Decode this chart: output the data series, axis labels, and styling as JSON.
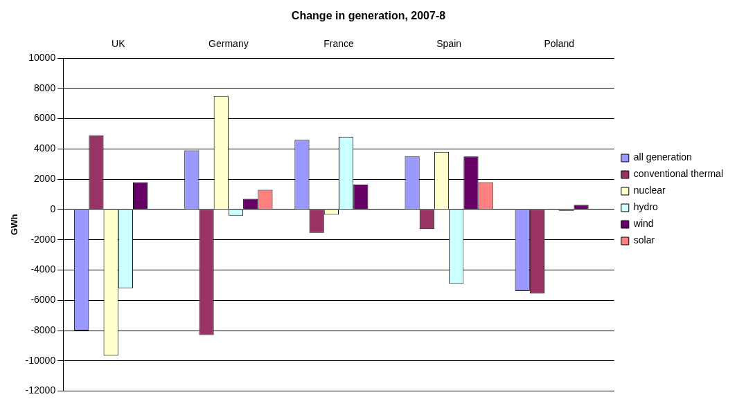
{
  "chart_data": {
    "type": "bar",
    "title": "Change in generation, 2007-8",
    "ylabel": "GWh",
    "categories": [
      "UK",
      "Germany",
      "France",
      "Spain",
      "Poland"
    ],
    "series": [
      {
        "name": "all generation",
        "color": "#9999ff",
        "values": [
          -8000,
          3900,
          4600,
          3500,
          -5400
        ]
      },
      {
        "name": "conventional thermal",
        "color": "#993366",
        "values": [
          4900,
          -8300,
          -1550,
          -1300,
          -5550
        ]
      },
      {
        "name": "nuclear",
        "color": "#ffffcc",
        "values": [
          -9650,
          7500,
          -350,
          3800,
          0
        ]
      },
      {
        "name": "hydro",
        "color": "#ccffff",
        "values": [
          -5200,
          -400,
          4800,
          -4900,
          -100
        ]
      },
      {
        "name": "wind",
        "color": "#660066",
        "values": [
          1800,
          700,
          1650,
          3500,
          300
        ]
      },
      {
        "name": "solar",
        "color": "#ff8080",
        "values": [
          0,
          1300,
          0,
          1800,
          0
        ]
      }
    ],
    "ylim": [
      -12000,
      10000
    ],
    "yticks": [
      -12000,
      -10000,
      -8000,
      -6000,
      -4000,
      -2000,
      0,
      2000,
      4000,
      6000,
      8000,
      10000
    ],
    "grid": "y",
    "legend": "right"
  }
}
